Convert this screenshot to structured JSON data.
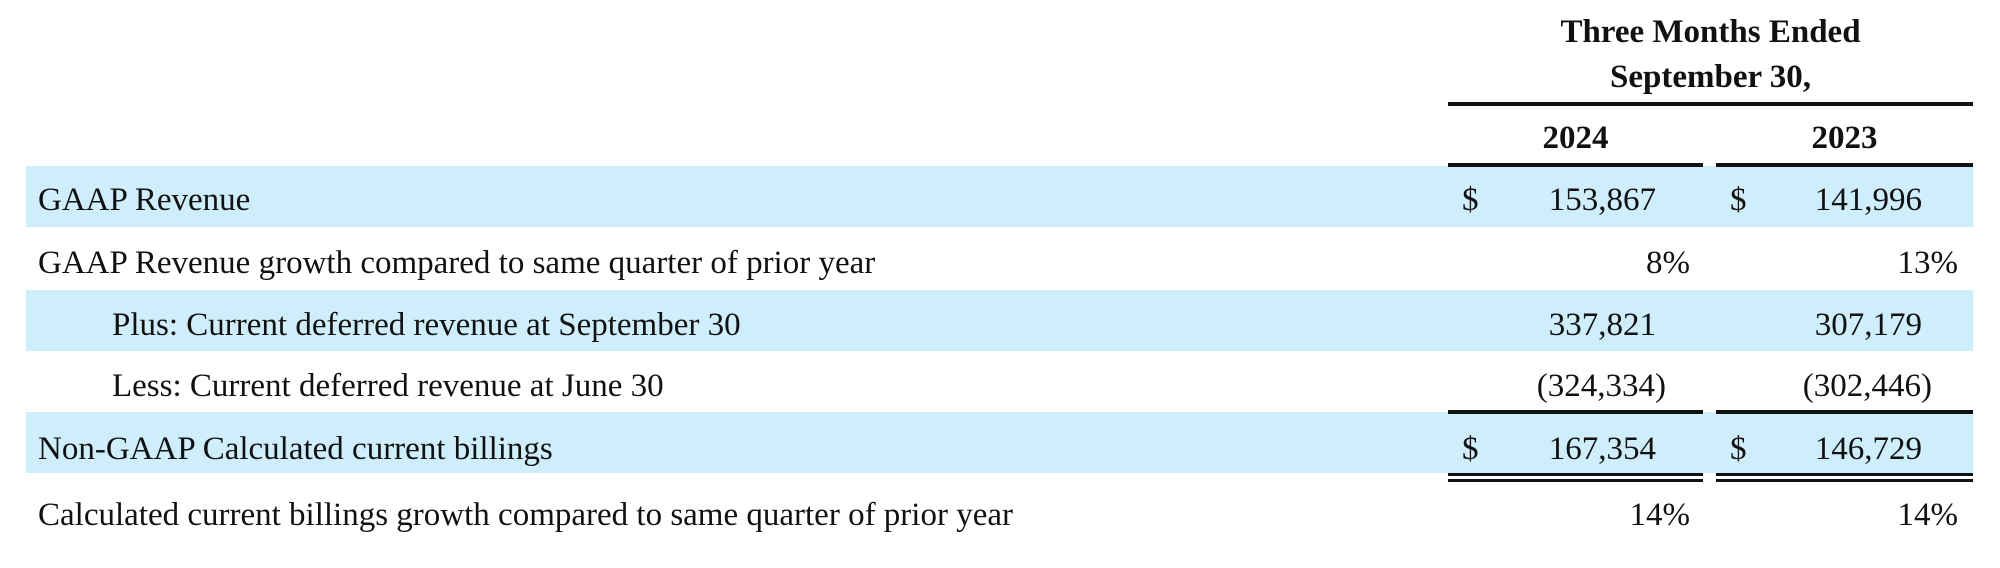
{
  "table": {
    "header": {
      "title_lines": [
        "Three Months Ended",
        "September 30,"
      ],
      "columns": [
        "2024",
        "2023"
      ]
    },
    "rows": [
      {
        "label": "GAAP Revenue",
        "cells": [
          {
            "currency": "$",
            "value": "153,867"
          },
          {
            "currency": "$",
            "value": "141,996"
          }
        ]
      },
      {
        "label": "GAAP Revenue growth compared to same quarter of prior year",
        "cells": [
          {
            "value": "8%"
          },
          {
            "value": "13%"
          }
        ]
      },
      {
        "label": "Plus: Current deferred revenue at September 30",
        "cells": [
          {
            "value": "337,821"
          },
          {
            "value": "307,179"
          }
        ]
      },
      {
        "label": "Less: Current deferred revenue at June 30",
        "cells": [
          {
            "value": "(324,334)"
          },
          {
            "value": "(302,446)"
          }
        ]
      },
      {
        "label": "Non-GAAP Calculated current billings",
        "cells": [
          {
            "currency": "$",
            "value": "167,354"
          },
          {
            "currency": "$",
            "value": "146,729"
          }
        ]
      },
      {
        "label": "Calculated current billings growth compared to same quarter of prior year",
        "cells": [
          {
            "value": "14%"
          },
          {
            "value": "14%"
          }
        ]
      }
    ]
  }
}
